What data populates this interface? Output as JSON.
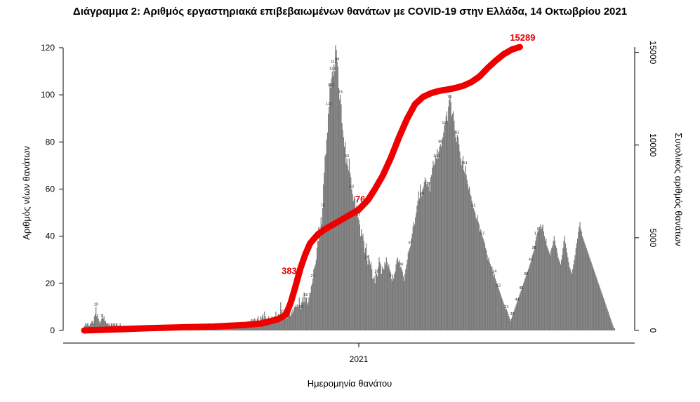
{
  "chart_data": {
    "type": "bar",
    "title": "Διάγραμμα 2: Αριθμός εργαστηριακά επιβεβαιωμένων θανάτων με COVID-19 στην Ελλάδα, 14 Οκτωβρίου 2021",
    "xlabel": "Ημερομηνία θανάτου",
    "ylabel": "Αριθμός νέων θανάτων",
    "y2label": "Συνολικός αριθμός θανάτων",
    "x_tick_labels": [
      "2021"
    ],
    "y_ticks": [
      0,
      20,
      40,
      60,
      80,
      100,
      120
    ],
    "y2_ticks": [
      0,
      5000,
      10000,
      15000
    ],
    "ylim": [
      0,
      120
    ],
    "y2lim": [
      0,
      15289
    ],
    "series": [
      {
        "values": [
          2,
          3,
          2,
          3,
          3,
          2,
          2,
          3,
          3,
          4,
          4,
          3,
          6,
          7,
          10,
          6,
          7,
          5,
          4,
          3,
          4,
          5,
          7,
          5,
          6,
          4,
          4,
          3,
          3,
          3,
          2,
          3,
          2,
          3,
          3,
          2,
          3,
          3,
          2,
          3,
          3,
          2,
          2,
          2,
          3,
          2,
          2,
          1,
          2,
          2,
          2,
          1,
          2,
          2,
          2,
          2,
          2,
          2,
          2,
          2,
          2,
          2,
          2,
          1,
          2,
          2,
          2,
          2,
          2,
          2,
          2,
          2,
          2,
          2,
          2,
          2,
          2,
          2,
          2,
          2,
          1,
          1,
          1,
          2,
          2,
          1,
          2,
          2,
          2,
          2,
          2,
          2,
          2,
          1,
          2,
          2,
          2,
          2,
          2,
          2,
          2,
          2,
          2,
          2,
          2,
          2,
          2,
          2,
          2,
          2,
          2,
          2,
          2,
          2,
          2,
          2,
          2,
          2,
          2,
          2,
          2,
          2,
          2,
          2,
          2,
          2,
          2,
          2,
          2,
          2,
          2,
          2,
          2,
          2,
          2,
          2,
          2,
          2,
          2,
          2,
          2,
          2,
          2,
          2,
          2,
          2,
          2,
          2,
          2,
          2,
          2,
          1,
          2,
          2,
          2,
          2,
          2,
          2,
          2,
          2,
          2,
          2,
          2,
          2,
          2,
          2,
          2,
          2,
          2,
          2,
          2,
          2,
          2,
          2,
          2,
          2,
          2,
          2,
          2,
          2,
          2,
          2,
          2,
          2,
          2,
          2,
          2,
          2,
          2,
          2,
          2,
          2,
          2,
          2,
          3,
          3,
          3,
          2,
          3,
          3,
          2,
          3,
          2,
          3,
          3,
          3,
          3,
          3,
          4,
          4,
          5,
          5,
          4,
          4,
          5,
          6,
          4,
          3,
          6,
          5,
          6,
          7,
          5,
          8,
          6,
          5,
          5,
          5,
          6,
          5,
          5,
          5,
          6,
          5,
          4,
          6,
          5,
          8,
          6,
          5,
          7,
          6,
          6,
          12,
          6,
          7,
          6,
          7,
          7,
          5,
          6,
          5,
          7,
          8,
          7,
          6,
          8,
          7,
          9,
          8,
          10,
          10,
          11,
          10,
          11,
          10,
          14,
          11,
          9,
          12,
          14,
          12,
          16,
          12,
          14,
          14,
          11,
          12,
          14,
          16,
          16,
          19,
          20,
          22,
          26,
          27,
          28,
          30,
          35,
          38,
          38,
          43,
          42,
          48,
          45,
          52,
          62,
          67,
          74,
          75,
          81,
          84,
          92,
          95,
          105,
          103,
          107,
          110,
          108,
          113,
          110,
          121,
          119,
          114,
          112,
          103,
          98,
          100,
          96,
          88,
          85,
          82,
          78,
          80,
          71,
          73,
          70,
          68,
          73,
          67,
          65,
          60,
          58,
          55,
          57,
          56,
          52,
          53,
          49,
          48,
          47,
          45,
          40,
          43,
          40,
          41,
          38,
          33,
          35,
          37,
          30,
          28,
          32,
          30,
          28,
          29,
          26,
          22,
          22,
          23,
          20,
          25,
          24,
          23,
          27,
          31,
          29,
          28,
          24,
          27,
          26,
          26,
          29,
          28,
          31,
          29,
          27,
          28,
          26,
          25,
          22,
          21,
          23,
          22,
          24,
          25,
          28,
          30,
          31,
          29,
          30,
          27,
          27,
          26,
          25,
          23,
          21,
          24,
          26,
          28,
          30,
          33,
          34,
          35,
          36,
          39,
          41,
          44,
          46,
          45,
          48,
          50,
          53,
          55,
          59,
          56,
          62,
          58,
          57,
          60,
          61,
          63,
          65,
          64,
          62,
          63,
          61,
          63,
          59,
          65,
          66,
          69,
          72,
          70,
          71,
          74,
          73,
          77,
          73,
          76,
          78,
          79,
          78,
          81,
          82,
          84,
          87,
          88,
          91,
          93,
          89,
          95,
          98,
          100,
          97,
          91,
          92,
          93,
          89,
          85,
          82,
          80,
          83,
          82,
          79,
          76,
          73,
          70,
          72,
          74,
          68,
          67,
          70,
          66,
          64,
          62,
          60,
          61,
          58,
          57,
          55,
          53,
          52,
          51,
          50,
          48,
          47,
          49,
          46,
          45,
          42,
          43,
          41,
          40,
          39,
          38,
          37,
          35,
          34,
          32,
          30,
          31,
          29,
          28,
          27,
          27,
          25,
          23,
          24,
          22,
          21,
          20,
          19,
          18,
          17,
          16,
          15,
          14,
          13,
          12,
          11,
          10,
          9,
          9,
          8,
          7,
          6,
          5,
          4,
          5,
          6,
          7,
          8,
          9,
          10,
          11,
          12,
          13,
          14,
          15,
          16,
          17,
          18,
          19,
          20,
          21,
          22,
          23,
          24,
          25,
          26,
          27,
          28,
          29,
          30,
          32,
          33,
          34,
          36,
          38,
          40,
          41,
          42,
          43,
          44,
          45,
          43,
          44,
          45,
          42,
          40,
          38,
          39,
          36,
          35,
          34,
          33,
          32,
          34,
          35,
          36,
          38,
          40,
          38,
          36,
          35,
          33,
          31,
          30,
          29,
          28,
          30,
          32,
          35,
          38,
          40,
          37,
          35,
          33,
          31,
          29,
          27,
          26,
          25,
          24,
          26,
          28,
          30,
          32,
          35,
          37,
          39,
          42,
          44,
          46,
          43,
          42,
          40,
          39,
          38,
          37,
          36,
          35,
          34,
          33,
          32,
          31,
          30,
          29,
          28,
          27,
          26,
          25,
          24,
          23,
          22,
          21,
          20,
          19,
          18,
          17,
          16,
          15,
          14,
          13,
          12,
          11,
          10,
          9,
          8,
          7,
          6,
          5,
          4,
          3,
          2,
          1,
          1
        ]
      },
      {
        "axis": "right",
        "values_at": [
          [
            0,
            0
          ],
          [
            40,
            55
          ],
          [
            80,
            125
          ],
          [
            120,
            170
          ],
          [
            160,
            210
          ],
          [
            200,
            300
          ],
          [
            220,
            380
          ],
          [
            240,
            600
          ],
          [
            250,
            850
          ],
          [
            256,
            1500
          ],
          [
            262,
            2400
          ],
          [
            268,
            3350
          ],
          [
            274,
            4100
          ],
          [
            280,
            4700
          ],
          [
            290,
            5200
          ],
          [
            300,
            5500
          ],
          [
            320,
            6000
          ],
          [
            340,
            6500
          ],
          [
            352,
            7050
          ],
          [
            360,
            7600
          ],
          [
            370,
            8350
          ],
          [
            380,
            9300
          ],
          [
            390,
            10400
          ],
          [
            400,
            11400
          ],
          [
            410,
            12200
          ],
          [
            420,
            12600
          ],
          [
            430,
            12800
          ],
          [
            440,
            12920
          ],
          [
            450,
            12990
          ],
          [
            460,
            13080
          ],
          [
            470,
            13200
          ],
          [
            480,
            13400
          ],
          [
            490,
            13700
          ],
          [
            500,
            14150
          ],
          [
            510,
            14550
          ],
          [
            520,
            14900
          ],
          [
            530,
            15150
          ],
          [
            540,
            15289
          ]
        ]
      }
    ],
    "bar_labels": [
      {
        "i": 14,
        "text": "10"
      },
      {
        "i": 21,
        "text": "7"
      },
      {
        "i": 207,
        "text": "8"
      },
      {
        "i": 245,
        "text": "12"
      },
      {
        "i": 268,
        "text": "14"
      },
      {
        "i": 274,
        "text": "16"
      },
      {
        "i": 283,
        "text": "27"
      },
      {
        "i": 292,
        "text": "62"
      },
      {
        "i": 295,
        "text": "75"
      },
      {
        "i": 303,
        "text": "121"
      },
      {
        "i": 305,
        "text": "110"
      },
      {
        "i": 307,
        "text": "119"
      },
      {
        "i": 309,
        "text": "112"
      },
      {
        "i": 313,
        "text": "88"
      },
      {
        "i": 317,
        "text": "73"
      },
      {
        "i": 325,
        "text": "60"
      },
      {
        "i": 331,
        "text": "53"
      },
      {
        "i": 339,
        "text": "37"
      },
      {
        "i": 350,
        "text": "29"
      },
      {
        "i": 362,
        "text": "20"
      },
      {
        "i": 380,
        "text": "31"
      },
      {
        "i": 392,
        "text": "39"
      },
      {
        "i": 404,
        "text": "57"
      },
      {
        "i": 418,
        "text": "89"
      },
      {
        "i": 426,
        "text": "77"
      },
      {
        "i": 436,
        "text": "100"
      },
      {
        "i": 441,
        "text": "90"
      },
      {
        "i": 446,
        "text": "93"
      },
      {
        "i": 452,
        "text": "79"
      },
      {
        "i": 462,
        "text": "61"
      },
      {
        "i": 472,
        "text": "51"
      },
      {
        "i": 482,
        "text": "41"
      },
      {
        "i": 493,
        "text": "27"
      },
      {
        "i": 508,
        "text": "14"
      },
      {
        "i": 513,
        "text": "12"
      },
      {
        "i": 523,
        "text": "21"
      },
      {
        "i": 530,
        "text": "33"
      },
      {
        "i": 536,
        "text": "44"
      },
      {
        "i": 541,
        "text": "45"
      },
      {
        "i": 547,
        "text": "38"
      },
      {
        "i": 553,
        "text": "44"
      },
      {
        "i": 557,
        "text": "36"
      },
      {
        "i": 560,
        "text": "17"
      },
      {
        "i": 562,
        "text": "0"
      }
    ],
    "cumulative_labels": [
      {
        "at": 267,
        "text": "383"
      },
      {
        "at": 352,
        "text": "76"
      },
      {
        "at": 540,
        "text": "15289"
      }
    ],
    "colors": {
      "bars": "#7a7a7a",
      "cumulative_line": "#ee0000",
      "axes": "#000000"
    },
    "grid": false,
    "legend": "none"
  }
}
